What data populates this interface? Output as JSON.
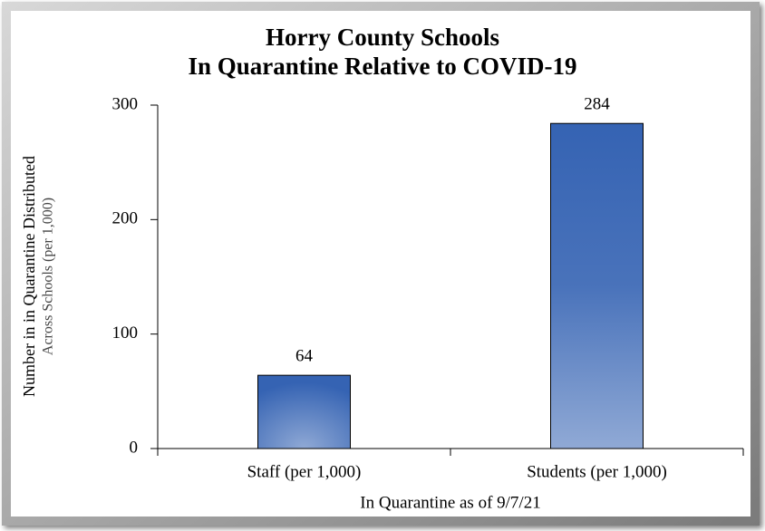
{
  "chart_data": {
    "type": "bar",
    "title": [
      "Horry County Schools",
      "In Quarantine Relative to COVID-19"
    ],
    "x_label": "In Quarantine as of 9/7/21",
    "y_label": [
      "Number in in Quarantine Distributed",
      "Across Schools (per 1,000)"
    ],
    "categories": [
      "Staff (per 1,000)",
      "Students (per 1,000)"
    ],
    "values": [
      64,
      284
    ],
    "color": "#3563b3",
    "ylim": [
      0,
      300
    ],
    "yticks": [
      0,
      100,
      200,
      300
    ],
    "grid": false
  }
}
